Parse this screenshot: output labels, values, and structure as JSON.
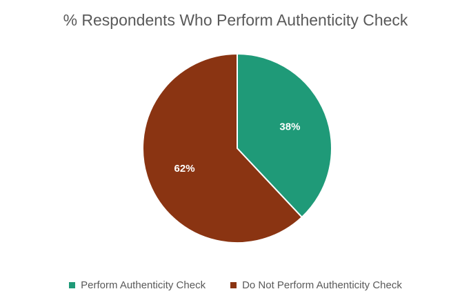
{
  "chart_data": {
    "type": "pie",
    "title": "% Respondents Who Perform Authenticity Check",
    "slices": [
      {
        "name": "Perform Authenticity Check",
        "value": 38,
        "label": "38%",
        "color": "#1f9a78"
      },
      {
        "name": "Do Not Perform Authenticity Check",
        "value": 62,
        "label": "62%",
        "color": "#8a3412"
      }
    ],
    "legend_position": "bottom"
  }
}
